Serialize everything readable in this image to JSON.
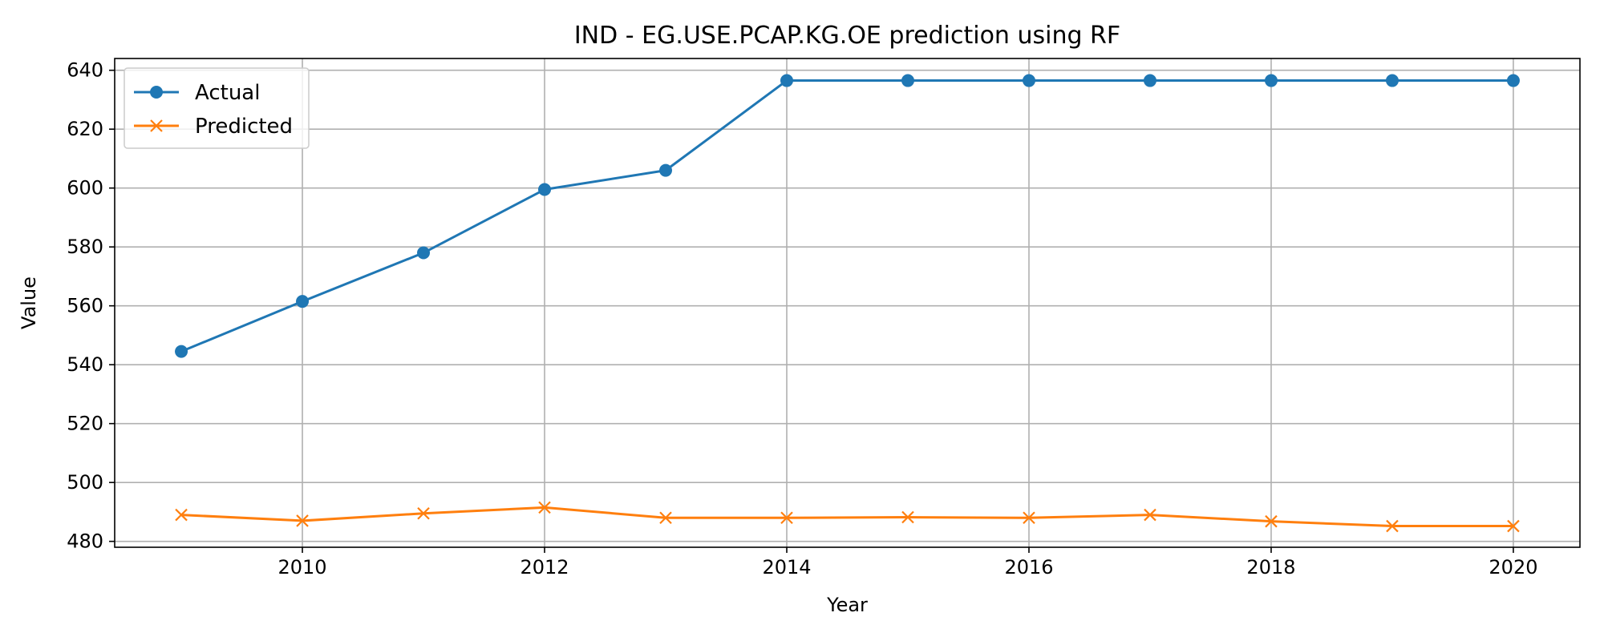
{
  "chart_data": {
    "type": "line",
    "title": "IND - EG.USE.PCAP.KG.OE prediction using RF",
    "xlabel": "Year",
    "ylabel": "Value",
    "x": [
      2009,
      2010,
      2011,
      2012,
      2013,
      2014,
      2015,
      2016,
      2017,
      2018,
      2019,
      2020
    ],
    "xlim": [
      2008.45,
      2020.55
    ],
    "ylim": [
      478,
      644
    ],
    "xticks": [
      2010,
      2012,
      2014,
      2016,
      2018,
      2020
    ],
    "yticks": [
      480,
      500,
      520,
      540,
      560,
      580,
      600,
      620,
      640
    ],
    "grid": true,
    "legend_position": "top-left",
    "series": [
      {
        "name": "Actual",
        "color": "#1f77b4",
        "marker": "circle",
        "values": [
          544.5,
          561.5,
          578.0,
          599.5,
          606.0,
          636.5,
          636.5,
          636.5,
          636.5,
          636.5,
          636.5,
          636.5
        ]
      },
      {
        "name": "Predicted",
        "color": "#ff7f0e",
        "marker": "x",
        "values": [
          489.0,
          487.0,
          489.5,
          491.5,
          488.0,
          488.0,
          488.2,
          488.0,
          489.0,
          486.8,
          485.2,
          485.2
        ]
      }
    ]
  }
}
